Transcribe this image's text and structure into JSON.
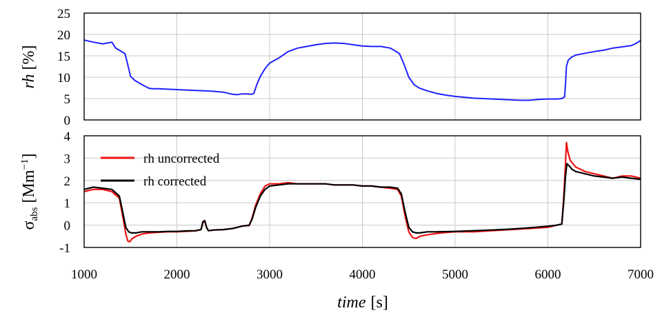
{
  "chart_data": [
    {
      "type": "line",
      "ylabel": "rh [%]",
      "ylabel_parts": {
        "var": "rh",
        "unit": "[%]"
      },
      "xlim": [
        1000,
        7000
      ],
      "ylim": [
        0,
        25
      ],
      "x_ticks": [
        1000,
        2000,
        3000,
        4000,
        5000,
        6000,
        7000
      ],
      "y_ticks": [
        0,
        5,
        10,
        15,
        20,
        25
      ],
      "y_tick_labels": [
        "0",
        "5",
        "10",
        "15",
        "20",
        "25"
      ],
      "grid": true,
      "series": [
        {
          "color": "#1f1fff",
          "x": [
            1000,
            1100,
            1200,
            1300,
            1340,
            1380,
            1440,
            1470,
            1500,
            1550,
            1620,
            1700,
            1740,
            1800,
            1900,
            2000,
            2100,
            2200,
            2300,
            2400,
            2500,
            2600,
            2650,
            2700,
            2760,
            2800,
            2830,
            2860,
            2900,
            2950,
            3000,
            3100,
            3200,
            3300,
            3400,
            3500,
            3600,
            3700,
            3800,
            3900,
            4000,
            4100,
            4200,
            4300,
            4350,
            4400,
            4450,
            4500,
            4560,
            4620,
            4650,
            4700,
            4800,
            4900,
            5000,
            5100,
            5200,
            5300,
            5400,
            5500,
            5600,
            5700,
            5800,
            5900,
            6000,
            6100,
            6150,
            6180,
            6190,
            6200,
            6220,
            6250,
            6300,
            6400,
            6500,
            6600,
            6700,
            6800,
            6900,
            6950,
            7000
          ],
          "y": [
            18.7,
            18.2,
            17.8,
            18.2,
            16.8,
            16.3,
            15.5,
            13.0,
            10.2,
            9.2,
            8.3,
            7.4,
            7.3,
            7.3,
            7.2,
            7.1,
            7.0,
            6.9,
            6.8,
            6.7,
            6.5,
            6.0,
            5.9,
            6.1,
            6.1,
            6.0,
            6.2,
            8.2,
            10.2,
            12.0,
            13.3,
            14.5,
            16.0,
            16.8,
            17.2,
            17.6,
            17.9,
            18.0,
            17.9,
            17.6,
            17.3,
            17.2,
            17.2,
            16.8,
            16.2,
            15.5,
            13.0,
            10.0,
            8.2,
            7.4,
            7.2,
            6.8,
            6.2,
            5.8,
            5.5,
            5.3,
            5.1,
            5.0,
            4.9,
            4.8,
            4.7,
            4.6,
            4.6,
            4.8,
            4.9,
            4.9,
            5.0,
            5.4,
            8.5,
            12.5,
            14.0,
            14.6,
            15.2,
            15.6,
            16.0,
            16.3,
            16.8,
            17.1,
            17.4,
            17.9,
            18.6
          ]
        }
      ]
    },
    {
      "type": "line",
      "ylabel": "σabs [Mm−1]",
      "ylabel_parts": {
        "sym": "σ",
        "sub": "abs",
        "unit_pre": "[Mm",
        "sup": "−1",
        "unit_post": "]"
      },
      "xlabel": "time [s]",
      "xlabel_parts": {
        "var": "time",
        "unit": "[s]"
      },
      "xlim": [
        1000,
        7000
      ],
      "ylim": [
        -1,
        4
      ],
      "x_ticks": [
        1000,
        2000,
        3000,
        4000,
        5000,
        6000,
        7000
      ],
      "x_tick_labels": [
        "1000",
        "2000",
        "3000",
        "4000",
        "5000",
        "6000",
        "7000"
      ],
      "y_ticks": [
        -1,
        0,
        1,
        2,
        3,
        4
      ],
      "y_tick_labels": [
        "-1",
        "0",
        "1",
        "2",
        "3",
        "4"
      ],
      "grid": true,
      "legend_placement": "top-left",
      "series": [
        {
          "name": "rh uncorrected",
          "color": "#ee1111",
          "x": [
            1000,
            1100,
            1200,
            1300,
            1380,
            1420,
            1450,
            1470,
            1490,
            1520,
            1560,
            1620,
            1700,
            1800,
            1900,
            2000,
            2100,
            2200,
            2260,
            2280,
            2300,
            2320,
            2340,
            2400,
            2500,
            2600,
            2700,
            2780,
            2810,
            2850,
            2900,
            2950,
            3000,
            3100,
            3200,
            3300,
            3400,
            3500,
            3600,
            3700,
            3800,
            3900,
            4000,
            4100,
            4200,
            4300,
            4380,
            4420,
            4460,
            4500,
            4540,
            4580,
            4620,
            4680,
            4750,
            4850,
            5000,
            5200,
            5400,
            5600,
            5800,
            6000,
            6100,
            6150,
            6170,
            6190,
            6200,
            6215,
            6240,
            6300,
            6400,
            6500,
            6600,
            6700,
            6800,
            6900,
            7000
          ],
          "y": [
            1.5,
            1.6,
            1.6,
            1.5,
            1.2,
            0.3,
            -0.4,
            -0.7,
            -0.75,
            -0.6,
            -0.5,
            -0.4,
            -0.35,
            -0.32,
            -0.3,
            -0.3,
            -0.28,
            -0.26,
            -0.2,
            0.1,
            0.2,
            -0.1,
            -0.25,
            -0.22,
            -0.2,
            -0.15,
            -0.05,
            -0.02,
            0.3,
            0.9,
            1.4,
            1.75,
            1.85,
            1.85,
            1.9,
            1.85,
            1.85,
            1.85,
            1.85,
            1.8,
            1.8,
            1.8,
            1.75,
            1.75,
            1.7,
            1.65,
            1.6,
            1.3,
            0.4,
            -0.3,
            -0.55,
            -0.6,
            -0.5,
            -0.45,
            -0.4,
            -0.35,
            -0.3,
            -0.3,
            -0.25,
            -0.2,
            -0.15,
            -0.1,
            0.0,
            0.05,
            1.2,
            2.8,
            3.7,
            3.3,
            2.9,
            2.6,
            2.4,
            2.3,
            2.2,
            2.1,
            2.2,
            2.2,
            2.1
          ]
        },
        {
          "name": "rh corrected",
          "color": "#000000",
          "x": [
            1000,
            1100,
            1200,
            1300,
            1380,
            1420,
            1450,
            1480,
            1510,
            1560,
            1620,
            1700,
            1800,
            1900,
            2000,
            2100,
            2200,
            2260,
            2280,
            2300,
            2320,
            2340,
            2400,
            2500,
            2600,
            2700,
            2780,
            2810,
            2850,
            2900,
            2950,
            3000,
            3100,
            3200,
            3300,
            3400,
            3500,
            3600,
            3700,
            3800,
            3900,
            4000,
            4100,
            4200,
            4300,
            4380,
            4420,
            4460,
            4500,
            4540,
            4580,
            4620,
            4700,
            4800,
            5000,
            5200,
            5400,
            5600,
            5800,
            6000,
            6100,
            6150,
            6170,
            6190,
            6205,
            6230,
            6260,
            6300,
            6400,
            6500,
            6600,
            6700,
            6800,
            6900,
            7000
          ],
          "y": [
            1.6,
            1.7,
            1.65,
            1.6,
            1.3,
            0.5,
            -0.1,
            -0.3,
            -0.35,
            -0.35,
            -0.3,
            -0.3,
            -0.3,
            -0.28,
            -0.28,
            -0.26,
            -0.25,
            -0.2,
            0.15,
            0.2,
            -0.1,
            -0.25,
            -0.22,
            -0.2,
            -0.15,
            -0.05,
            0.0,
            0.25,
            0.8,
            1.3,
            1.6,
            1.75,
            1.8,
            1.85,
            1.85,
            1.85,
            1.85,
            1.85,
            1.8,
            1.8,
            1.8,
            1.75,
            1.75,
            1.7,
            1.7,
            1.65,
            1.4,
            0.6,
            -0.1,
            -0.3,
            -0.35,
            -0.35,
            -0.3,
            -0.3,
            -0.28,
            -0.25,
            -0.22,
            -0.18,
            -0.12,
            -0.05,
            0.0,
            0.05,
            1.0,
            2.2,
            2.75,
            2.65,
            2.5,
            2.4,
            2.3,
            2.2,
            2.15,
            2.1,
            2.15,
            2.1,
            2.05
          ]
        }
      ]
    }
  ]
}
